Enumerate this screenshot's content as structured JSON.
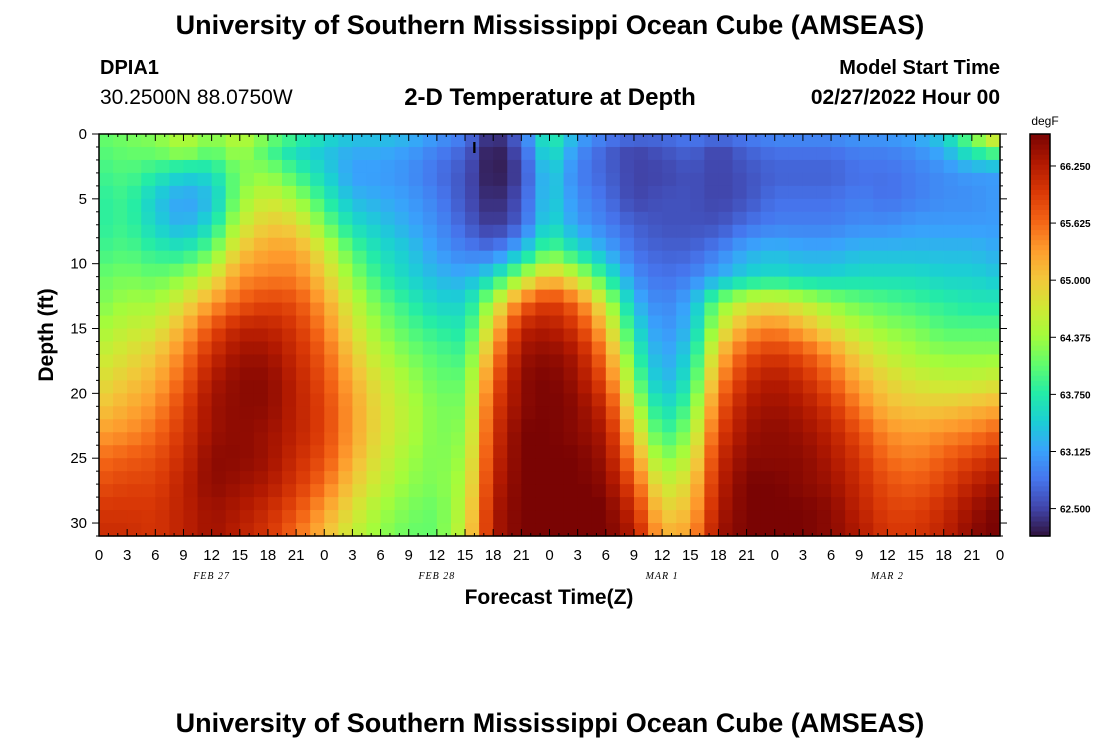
{
  "header": {
    "title": "University of Southern Mississippi Ocean Cube (AMSEAS)",
    "station_id": "DPIA1",
    "coords": "30.2500N  88.0750W",
    "chart_title": "2-D Temperature at Depth",
    "model_start_label": "Model Start Time",
    "model_start_value": "02/27/2022 Hour 00"
  },
  "footer": {
    "title": "University of Southern Mississippi Ocean Cube (AMSEAS)"
  },
  "chart_data": {
    "type": "heatmap",
    "title": "2-D Temperature at Depth",
    "xlabel": "Forecast Time(Z)",
    "ylabel": "Depth (ft)",
    "x_unit": "hours since model start (every 3 h)",
    "xlim": [
      0,
      96
    ],
    "ylim": [
      0,
      31
    ],
    "y_inverted": true,
    "x_tick_labels": [
      "0",
      "3",
      "6",
      "9",
      "12",
      "15",
      "18",
      "21",
      "0",
      "3",
      "6",
      "9",
      "12",
      "15",
      "18",
      "21",
      "0",
      "3",
      "6",
      "9",
      "12",
      "15",
      "18",
      "21",
      "0",
      "3",
      "6",
      "9",
      "12",
      "15",
      "18",
      "21",
      "0"
    ],
    "y_ticks": [
      0,
      5,
      10,
      15,
      20,
      25,
      30
    ],
    "y_tick_labels": [
      "0",
      "5",
      "10",
      "15",
      "20",
      "25",
      "30"
    ],
    "day_labels": [
      {
        "label": "FEB 27",
        "hour": 12
      },
      {
        "label": "FEB 28",
        "hour": 36
      },
      {
        "label": "MAR 1",
        "hour": 60
      },
      {
        "label": "MAR 2",
        "hour": 84
      }
    ],
    "colorbar": {
      "unit": "degF",
      "min": 62.2,
      "max": 66.6,
      "tick_values": [
        62.5,
        63.125,
        63.75,
        64.375,
        65.0,
        65.625,
        66.25
      ],
      "tick_labels": [
        "62.500",
        "63.125",
        "63.750",
        "64.375",
        "65.000",
        "65.625",
        "66.250"
      ],
      "colormap": [
        "#30123b",
        "#4145ab",
        "#4675ed",
        "#39a2fc",
        "#1bcfd4",
        "#24eca6",
        "#61fc6c",
        "#a4fc3b",
        "#d1e834",
        "#f3c63a",
        "#fe9b2d",
        "#f36315",
        "#d93806",
        "#b11901",
        "#7a0403"
      ]
    },
    "marker": {
      "label": "I",
      "hour": 40,
      "depth": 1
    },
    "depth_levels_ft": [
      0,
      1.5,
      3,
      5,
      7,
      9,
      11,
      13,
      15,
      17,
      19,
      21,
      23,
      25,
      27,
      29,
      31
    ],
    "time_hours": [
      0,
      3,
      6,
      9,
      12,
      15,
      18,
      21,
      24,
      27,
      30,
      33,
      36,
      39,
      42,
      45,
      48,
      51,
      54,
      57,
      60,
      63,
      66,
      69,
      72,
      75,
      78,
      81,
      84,
      87,
      90,
      93,
      96
    ],
    "values_degF": [
      [
        64.1,
        64.2,
        64.3,
        64.6,
        64.3,
        64.6,
        64.2,
        63.9,
        63.6,
        63.4,
        63.4,
        63.3,
        63.1,
        62.9,
        62.3,
        62.8,
        63.9,
        63.2,
        62.9,
        62.8,
        62.8,
        62.9,
        62.8,
        62.9,
        63.0,
        63.0,
        63.0,
        63.1,
        63.1,
        63.2,
        63.5,
        64.3,
        65.2
      ],
      [
        64.0,
        64.1,
        64.1,
        64.3,
        64.0,
        64.4,
        64.0,
        63.6,
        63.4,
        63.2,
        63.2,
        63.1,
        62.9,
        62.7,
        62.2,
        62.6,
        63.7,
        63.0,
        62.7,
        62.5,
        62.6,
        62.7,
        62.5,
        62.7,
        62.8,
        62.8,
        62.8,
        62.9,
        62.9,
        63.0,
        63.2,
        63.7,
        64.0
      ],
      [
        63.9,
        64.0,
        63.8,
        63.5,
        63.6,
        64.2,
        64.3,
        63.9,
        63.5,
        63.1,
        63.1,
        63.0,
        62.8,
        62.6,
        62.2,
        62.5,
        63.5,
        62.9,
        62.7,
        62.5,
        62.5,
        62.6,
        62.5,
        62.6,
        62.7,
        62.7,
        62.7,
        62.8,
        62.8,
        62.9,
        63.0,
        63.1,
        63.1
      ],
      [
        63.8,
        63.9,
        63.4,
        63.1,
        63.3,
        64.3,
        64.7,
        64.4,
        63.8,
        63.3,
        63.2,
        63.1,
        62.9,
        62.6,
        62.3,
        62.6,
        63.5,
        63.0,
        62.8,
        62.5,
        62.6,
        62.6,
        62.5,
        62.6,
        62.8,
        62.8,
        62.8,
        62.9,
        62.8,
        62.9,
        63.0,
        63.0,
        63.1
      ],
      [
        63.8,
        63.9,
        63.5,
        63.2,
        63.6,
        64.6,
        65.0,
        64.9,
        64.2,
        63.6,
        63.4,
        63.2,
        63.0,
        62.7,
        62.4,
        62.7,
        63.6,
        63.1,
        62.9,
        62.7,
        62.6,
        62.6,
        62.6,
        62.8,
        62.9,
        62.9,
        62.9,
        63.0,
        63.0,
        63.1,
        63.1,
        63.1,
        63.1
      ],
      [
        63.9,
        64.0,
        63.8,
        63.7,
        64.1,
        65.0,
        65.3,
        65.3,
        64.7,
        64.0,
        63.6,
        63.4,
        63.1,
        62.9,
        62.8,
        63.3,
        64.1,
        63.6,
        63.2,
        62.8,
        62.7,
        62.7,
        62.9,
        63.2,
        63.3,
        63.2,
        63.2,
        63.3,
        63.3,
        63.3,
        63.3,
        63.3,
        63.2
      ],
      [
        64.1,
        64.2,
        64.1,
        64.3,
        64.7,
        65.4,
        65.5,
        65.5,
        65.0,
        64.3,
        63.8,
        63.5,
        63.3,
        63.2,
        63.6,
        64.4,
        65.1,
        64.6,
        63.8,
        63.0,
        62.8,
        62.9,
        63.2,
        63.5,
        63.6,
        63.5,
        63.5,
        63.6,
        63.6,
        63.6,
        63.5,
        63.5,
        63.4
      ],
      [
        64.2,
        64.4,
        64.4,
        64.8,
        65.3,
        65.7,
        65.9,
        65.8,
        65.3,
        64.6,
        64.1,
        63.8,
        63.5,
        63.5,
        64.5,
        65.6,
        66.0,
        65.6,
        64.6,
        63.3,
        62.9,
        63.2,
        64.2,
        64.7,
        64.8,
        64.6,
        64.3,
        64.1,
        64.0,
        63.9,
        63.8,
        63.7,
        63.7
      ],
      [
        64.4,
        64.6,
        64.7,
        65.2,
        65.8,
        66.2,
        66.2,
        66.0,
        65.5,
        64.8,
        64.3,
        64.0,
        63.8,
        63.7,
        65.0,
        66.2,
        66.3,
        66.0,
        65.1,
        63.6,
        63.0,
        63.3,
        64.6,
        65.3,
        65.5,
        65.2,
        64.8,
        64.5,
        64.3,
        64.2,
        64.0,
        64.0,
        64.0
      ],
      [
        64.6,
        64.8,
        65.0,
        65.5,
        66.1,
        66.4,
        66.4,
        66.1,
        65.7,
        65.0,
        64.5,
        64.2,
        64.0,
        63.9,
        65.4,
        66.4,
        66.5,
        66.3,
        65.5,
        63.9,
        63.1,
        63.5,
        65.1,
        65.8,
        66.0,
        65.8,
        65.4,
        64.9,
        64.6,
        64.4,
        64.3,
        64.3,
        64.3
      ],
      [
        64.8,
        65.0,
        65.2,
        65.7,
        66.3,
        66.5,
        66.5,
        66.2,
        65.8,
        65.2,
        64.7,
        64.4,
        64.1,
        64.1,
        65.7,
        66.5,
        66.6,
        66.4,
        65.8,
        64.2,
        63.2,
        63.7,
        65.4,
        66.1,
        66.3,
        66.1,
        65.7,
        65.2,
        64.9,
        64.7,
        64.6,
        64.6,
        64.7
      ],
      [
        65.0,
        65.2,
        65.4,
        65.9,
        66.4,
        66.5,
        66.5,
        66.2,
        65.9,
        65.3,
        64.8,
        64.5,
        64.2,
        64.2,
        65.9,
        66.5,
        66.6,
        66.5,
        66.1,
        64.6,
        63.5,
        64.0,
        65.7,
        66.3,
        66.4,
        66.3,
        66.0,
        65.5,
        65.1,
        65.0,
        65.0,
        65.1,
        65.2
      ],
      [
        65.3,
        65.4,
        65.6,
        66.0,
        66.4,
        66.5,
        66.4,
        66.2,
        65.9,
        65.3,
        64.8,
        64.5,
        64.2,
        64.3,
        66.0,
        66.6,
        66.6,
        66.5,
        66.3,
        65.0,
        63.8,
        64.3,
        65.9,
        66.4,
        66.5,
        66.4,
        66.2,
        65.8,
        65.4,
        65.3,
        65.4,
        65.5,
        65.7
      ],
      [
        65.6,
        65.7,
        65.8,
        66.1,
        66.5,
        66.5,
        66.4,
        66.1,
        65.8,
        65.2,
        64.7,
        64.4,
        64.2,
        64.4,
        66.1,
        66.6,
        66.6,
        66.6,
        66.4,
        65.4,
        64.2,
        64.6,
        66.1,
        66.5,
        66.5,
        66.5,
        66.3,
        66.0,
        65.6,
        65.5,
        65.7,
        65.9,
        66.1
      ],
      [
        65.8,
        65.9,
        65.9,
        66.2,
        66.5,
        66.4,
        66.3,
        66.0,
        65.6,
        65.0,
        64.6,
        64.3,
        64.2,
        64.5,
        66.2,
        66.6,
        66.7,
        66.6,
        66.5,
        65.8,
        64.6,
        64.9,
        66.2,
        66.6,
        66.6,
        66.5,
        66.4,
        66.1,
        65.8,
        65.7,
        65.9,
        66.2,
        66.4
      ],
      [
        66.0,
        66.0,
        66.0,
        66.2,
        66.4,
        66.3,
        66.1,
        65.8,
        65.3,
        64.8,
        64.4,
        64.2,
        64.1,
        64.6,
        66.3,
        66.6,
        66.7,
        66.7,
        66.6,
        66.1,
        64.9,
        65.1,
        66.3,
        66.6,
        66.6,
        66.6,
        66.5,
        66.2,
        65.9,
        65.9,
        66.1,
        66.4,
        66.6
      ],
      [
        66.1,
        66.1,
        66.0,
        66.2,
        66.4,
        66.2,
        66.0,
        65.6,
        65.1,
        64.6,
        64.3,
        64.1,
        64.1,
        64.7,
        66.3,
        66.6,
        66.7,
        66.7,
        66.6,
        66.3,
        65.2,
        65.3,
        66.4,
        66.6,
        66.6,
        66.6,
        66.5,
        66.3,
        66.0,
        66.0,
        66.2,
        66.5,
        66.7
      ]
    ]
  }
}
